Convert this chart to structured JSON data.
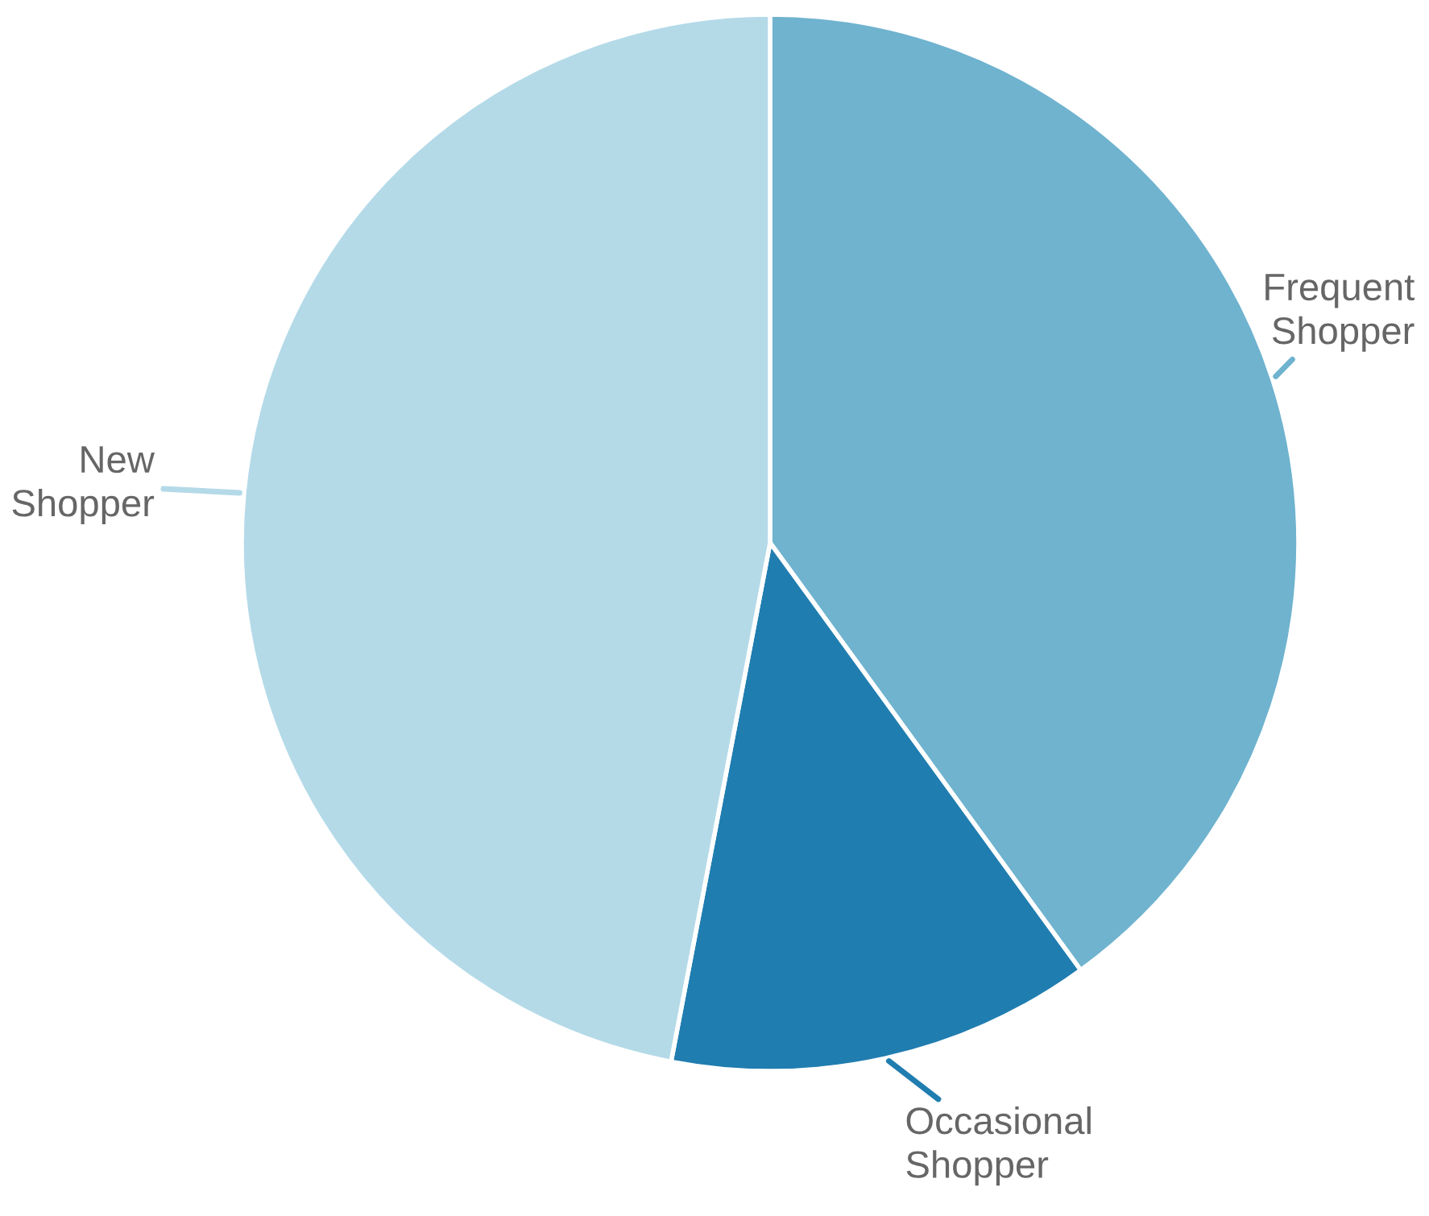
{
  "chart_data": {
    "type": "pie",
    "categories": [
      "Frequent\nShopper",
      "Occasional\nShopper",
      "New\nShopper"
    ],
    "values": [
      40,
      13,
      47
    ],
    "colors": [
      "#6fb3cf",
      "#207db0",
      "#b4dae8"
    ]
  }
}
